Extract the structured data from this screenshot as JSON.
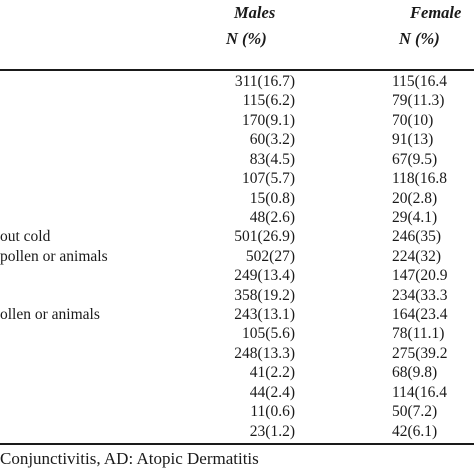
{
  "table": {
    "columns": {
      "males": "Males",
      "males_unit": "N (%)",
      "females": "Female",
      "females_unit": "N (%)"
    },
    "rows": [
      {
        "label": "",
        "males": "311(16.7)",
        "females": "115(16.4"
      },
      {
        "label": "",
        "males": "115(6.2)",
        "females": "79(11.3)"
      },
      {
        "label": "",
        "males": "170(9.1)",
        "females": "70(10)"
      },
      {
        "label": "",
        "males": "60(3.2)",
        "females": "91(13)"
      },
      {
        "label": "",
        "males": "83(4.5)",
        "females": "67(9.5)"
      },
      {
        "label": "",
        "males": "107(5.7)",
        "females": "118(16.8"
      },
      {
        "label": "",
        "males": "15(0.8)",
        "females": "20(2.8)"
      },
      {
        "label": "",
        "males": "48(2.6)",
        "females": "29(4.1)"
      },
      {
        "label": "out cold",
        "males": "501(26.9)",
        "females": "246(35)"
      },
      {
        "label": " pollen or animals",
        "males": "502(27)",
        "females": "224(32)"
      },
      {
        "label": "",
        "males": "249(13.4)",
        "females": "147(20.9"
      },
      {
        "label": "",
        "males": "358(19.2)",
        "females": "234(33.3"
      },
      {
        "label": "ollen or animals",
        "males": "243(13.1)",
        "females": "164(23.4"
      },
      {
        "label": "",
        "males": "105(5.6)",
        "females": "78(11.1)"
      },
      {
        "label": "",
        "males": "248(13.3)",
        "females": "275(39.2"
      },
      {
        "label": "",
        "males": "41(2.2)",
        "females": "68(9.8)"
      },
      {
        "label": "",
        "males": "44(2.4)",
        "females": "114(16.4"
      },
      {
        "label": "",
        "males": "11(0.6)",
        "females": "50(7.2)"
      },
      {
        "label": "",
        "males": "23(1.2)",
        "females": "42(6.1)"
      }
    ],
    "footnote": "Conjunctivitis, AD: Atopic Dermatitis"
  }
}
